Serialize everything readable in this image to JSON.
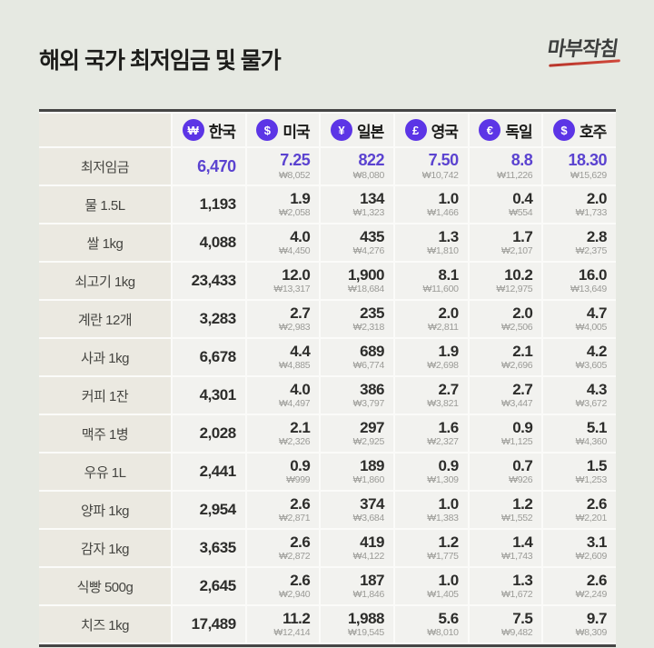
{
  "page": {
    "title": "해외 국가 최저임금 및 물가",
    "logo": "마부작침"
  },
  "colors": {
    "background": "#e6e9e2",
    "accent_purple": "#5c35e6",
    "highlight_text": "#5b43d0",
    "label_cell_bg": "#ebe9e1",
    "value_cell_bg": "#f2f2ef",
    "border_dark": "#454545",
    "logo_red": "#c0392b"
  },
  "chart_data": {
    "type": "table",
    "title": "해외 국가 최저임금 및 물가",
    "countries": [
      {
        "name": "한국",
        "currency_symbol": "₩"
      },
      {
        "name": "미국",
        "currency_symbol": "$"
      },
      {
        "name": "일본",
        "currency_symbol": "¥"
      },
      {
        "name": "영국",
        "currency_symbol": "£"
      },
      {
        "name": "독일",
        "currency_symbol": "€"
      },
      {
        "name": "호주",
        "currency_symbol": "$"
      }
    ],
    "rows": [
      {
        "label": "최저임금",
        "highlight": true,
        "values": [
          {
            "main": "6,470",
            "sub": ""
          },
          {
            "main": "7.25",
            "sub": "₩8,052"
          },
          {
            "main": "822",
            "sub": "₩8,080"
          },
          {
            "main": "7.50",
            "sub": "₩10,742"
          },
          {
            "main": "8.8",
            "sub": "₩11,226"
          },
          {
            "main": "18.30",
            "sub": "₩15,629"
          }
        ]
      },
      {
        "label": "물 1.5L",
        "highlight": false,
        "values": [
          {
            "main": "1,193",
            "sub": ""
          },
          {
            "main": "1.9",
            "sub": "₩2,058"
          },
          {
            "main": "134",
            "sub": "₩1,323"
          },
          {
            "main": "1.0",
            "sub": "₩1,466"
          },
          {
            "main": "0.4",
            "sub": "₩554"
          },
          {
            "main": "2.0",
            "sub": "₩1,733"
          }
        ]
      },
      {
        "label": "쌀 1kg",
        "highlight": false,
        "values": [
          {
            "main": "4,088",
            "sub": ""
          },
          {
            "main": "4.0",
            "sub": "₩4,450"
          },
          {
            "main": "435",
            "sub": "₩4,276"
          },
          {
            "main": "1.3",
            "sub": "₩1,810"
          },
          {
            "main": "1.7",
            "sub": "₩2,107"
          },
          {
            "main": "2.8",
            "sub": "₩2,375"
          }
        ]
      },
      {
        "label": "쇠고기 1kg",
        "highlight": false,
        "values": [
          {
            "main": "23,433",
            "sub": ""
          },
          {
            "main": "12.0",
            "sub": "₩13,317"
          },
          {
            "main": "1,900",
            "sub": "₩18,684"
          },
          {
            "main": "8.1",
            "sub": "₩11,600"
          },
          {
            "main": "10.2",
            "sub": "₩12,975"
          },
          {
            "main": "16.0",
            "sub": "₩13,649"
          }
        ]
      },
      {
        "label": "계란 12개",
        "highlight": false,
        "values": [
          {
            "main": "3,283",
            "sub": ""
          },
          {
            "main": "2.7",
            "sub": "₩2,983"
          },
          {
            "main": "235",
            "sub": "₩2,318"
          },
          {
            "main": "2.0",
            "sub": "₩2,811"
          },
          {
            "main": "2.0",
            "sub": "₩2,506"
          },
          {
            "main": "4.7",
            "sub": "₩4,005"
          }
        ]
      },
      {
        "label": "사과 1kg",
        "highlight": false,
        "values": [
          {
            "main": "6,678",
            "sub": ""
          },
          {
            "main": "4.4",
            "sub": "₩4,885"
          },
          {
            "main": "689",
            "sub": "₩6,774"
          },
          {
            "main": "1.9",
            "sub": "₩2,698"
          },
          {
            "main": "2.1",
            "sub": "₩2,696"
          },
          {
            "main": "4.2",
            "sub": "₩3,605"
          }
        ]
      },
      {
        "label": "커피 1잔",
        "highlight": false,
        "values": [
          {
            "main": "4,301",
            "sub": ""
          },
          {
            "main": "4.0",
            "sub": "₩4,497"
          },
          {
            "main": "386",
            "sub": "₩3,797"
          },
          {
            "main": "2.7",
            "sub": "₩3,821"
          },
          {
            "main": "2.7",
            "sub": "₩3,447"
          },
          {
            "main": "4.3",
            "sub": "₩3,672"
          }
        ]
      },
      {
        "label": "맥주 1병",
        "highlight": false,
        "values": [
          {
            "main": "2,028",
            "sub": ""
          },
          {
            "main": "2.1",
            "sub": "₩2,326"
          },
          {
            "main": "297",
            "sub": "₩2,925"
          },
          {
            "main": "1.6",
            "sub": "₩2,327"
          },
          {
            "main": "0.9",
            "sub": "₩1,125"
          },
          {
            "main": "5.1",
            "sub": "₩4,360"
          }
        ]
      },
      {
        "label": "우유 1L",
        "highlight": false,
        "values": [
          {
            "main": "2,441",
            "sub": ""
          },
          {
            "main": "0.9",
            "sub": "₩999"
          },
          {
            "main": "189",
            "sub": "₩1,860"
          },
          {
            "main": "0.9",
            "sub": "₩1,309"
          },
          {
            "main": "0.7",
            "sub": "₩926"
          },
          {
            "main": "1.5",
            "sub": "₩1,253"
          }
        ]
      },
      {
        "label": "양파 1kg",
        "highlight": false,
        "values": [
          {
            "main": "2,954",
            "sub": ""
          },
          {
            "main": "2.6",
            "sub": "₩2,871"
          },
          {
            "main": "374",
            "sub": "₩3,684"
          },
          {
            "main": "1.0",
            "sub": "₩1,383"
          },
          {
            "main": "1.2",
            "sub": "₩1,552"
          },
          {
            "main": "2.6",
            "sub": "₩2,201"
          }
        ]
      },
      {
        "label": "감자 1kg",
        "highlight": false,
        "values": [
          {
            "main": "3,635",
            "sub": ""
          },
          {
            "main": "2.6",
            "sub": "₩2,872"
          },
          {
            "main": "419",
            "sub": "₩4,122"
          },
          {
            "main": "1.2",
            "sub": "₩1,775"
          },
          {
            "main": "1.4",
            "sub": "₩1,743"
          },
          {
            "main": "3.1",
            "sub": "₩2,609"
          }
        ]
      },
      {
        "label": "식빵 500g",
        "highlight": false,
        "values": [
          {
            "main": "2,645",
            "sub": ""
          },
          {
            "main": "2.6",
            "sub": "₩2,940"
          },
          {
            "main": "187",
            "sub": "₩1,846"
          },
          {
            "main": "1.0",
            "sub": "₩1,405"
          },
          {
            "main": "1.3",
            "sub": "₩1,672"
          },
          {
            "main": "2.6",
            "sub": "₩2,249"
          }
        ]
      },
      {
        "label": "치즈 1kg",
        "highlight": false,
        "values": [
          {
            "main": "17,489",
            "sub": ""
          },
          {
            "main": "11.2",
            "sub": "₩12,414"
          },
          {
            "main": "1,988",
            "sub": "₩19,545"
          },
          {
            "main": "5.6",
            "sub": "₩8,010"
          },
          {
            "main": "7.5",
            "sub": "₩9,482"
          },
          {
            "main": "9.7",
            "sub": "₩8,309"
          }
        ]
      }
    ]
  }
}
